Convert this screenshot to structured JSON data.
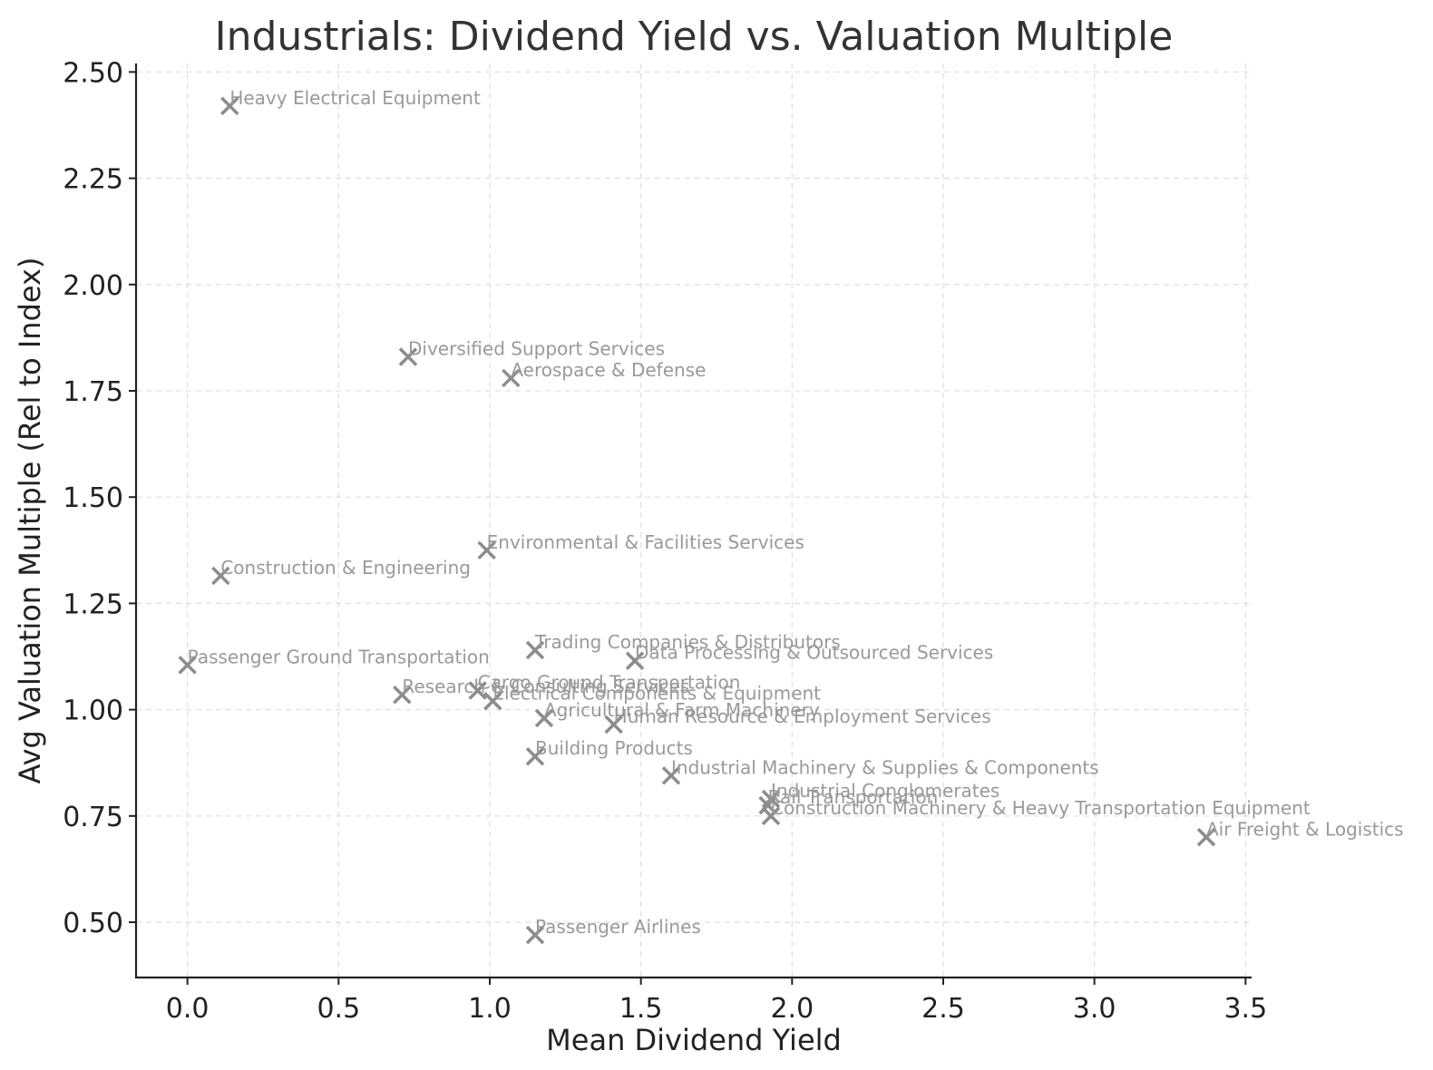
{
  "chart_data": {
    "type": "scatter",
    "title": "Industrials: Dividend Yield vs. Valuation Multiple",
    "xlabel": "Mean Dividend Yield",
    "ylabel": "Avg Valuation Multiple (Rel to Index)",
    "xlim": [
      -0.17,
      3.52
    ],
    "ylim": [
      0.37,
      2.52
    ],
    "xticks": [
      "0.0",
      "0.5",
      "1.0",
      "1.5",
      "2.0",
      "2.5",
      "3.0",
      "3.5"
    ],
    "yticks": [
      "0.50",
      "0.75",
      "1.00",
      "1.25",
      "1.50",
      "1.75",
      "2.00",
      "2.25",
      "2.50"
    ],
    "grid": true,
    "marker": "x",
    "marker_color": "#8c8c8c",
    "label_color": "#999999",
    "points": [
      {
        "label": "Heavy Electrical Equipment",
        "x": 0.14,
        "y": 2.42
      },
      {
        "label": "Diversified Support Services",
        "x": 0.73,
        "y": 1.83
      },
      {
        "label": "Aerospace & Defense",
        "x": 1.07,
        "y": 1.78
      },
      {
        "label": "Environmental & Facilities Services",
        "x": 0.99,
        "y": 1.375
      },
      {
        "label": "Construction & Engineering",
        "x": 0.11,
        "y": 1.315
      },
      {
        "label": "Trading Companies & Distributors",
        "x": 1.15,
        "y": 1.14
      },
      {
        "label": "Data Processing & Outsourced Services",
        "x": 1.48,
        "y": 1.115
      },
      {
        "label": "Passenger Ground Transportation",
        "x": 0.0,
        "y": 1.105
      },
      {
        "label": "Research & Consulting Services",
        "x": 0.71,
        "y": 1.035
      },
      {
        "label": "Cargo Ground Transportation",
        "x": 0.96,
        "y": 1.045
      },
      {
        "label": "Electrical Components & Equipment",
        "x": 1.01,
        "y": 1.02
      },
      {
        "label": "Agricultural & Farm Machinery",
        "x": 1.18,
        "y": 0.98
      },
      {
        "label": "Human Resource & Employment Services",
        "x": 1.41,
        "y": 0.965
      },
      {
        "label": "Building Products",
        "x": 1.15,
        "y": 0.89
      },
      {
        "label": "Industrial Machinery & Supplies & Components",
        "x": 1.6,
        "y": 0.845
      },
      {
        "label": "Industrial Conglomerates",
        "x": 1.93,
        "y": 0.79
      },
      {
        "label": "Rail Transportation",
        "x": 1.92,
        "y": 0.775
      },
      {
        "label": "Construction Machinery & Heavy Transportation Equipment",
        "x": 1.93,
        "y": 0.75
      },
      {
        "label": "Air Freight & Logistics",
        "x": 3.37,
        "y": 0.7
      },
      {
        "label": "Passenger Airlines",
        "x": 1.15,
        "y": 0.47
      }
    ]
  }
}
